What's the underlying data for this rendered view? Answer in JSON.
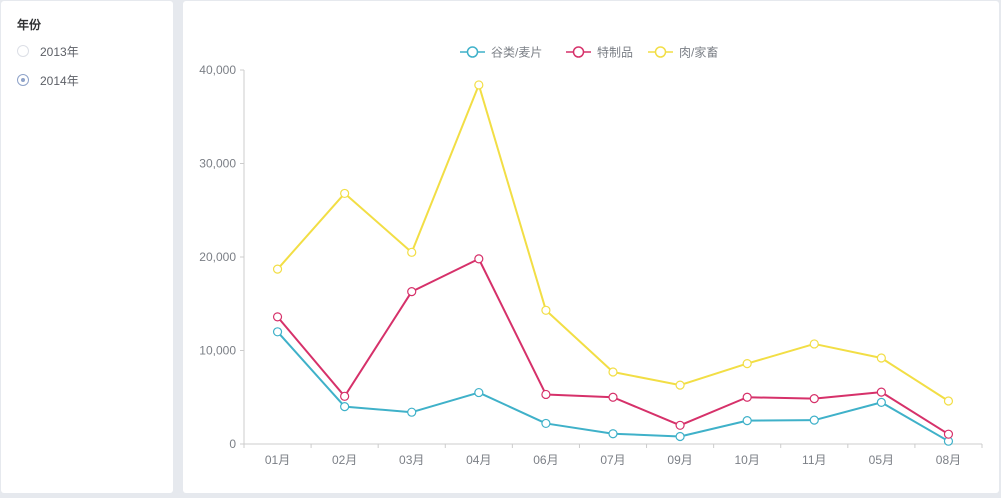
{
  "filter": {
    "title": "年份",
    "options": [
      {
        "label": "2013年",
        "checked": false
      },
      {
        "label": "2014年",
        "checked": true
      }
    ]
  },
  "chart_data": {
    "type": "line",
    "categories": [
      "01月",
      "02月",
      "03月",
      "04月",
      "06月",
      "07月",
      "09月",
      "10月",
      "11月",
      "05月",
      "08月"
    ],
    "ylim": [
      0,
      40000
    ],
    "yticks": [
      0,
      10000,
      20000,
      30000,
      40000
    ],
    "ytick_labels": [
      "0",
      "10,000",
      "20,000",
      "30,000",
      "40,000"
    ],
    "grid": false,
    "legend_position": "top-center",
    "series": [
      {
        "name": "谷类/麦片",
        "color": "#3fb1c9",
        "values": [
          12000,
          4000,
          3400,
          5500,
          2200,
          1100,
          800,
          2500,
          2550,
          4450,
          300
        ]
      },
      {
        "name": "特制品",
        "color": "#d6316a",
        "values": [
          13600,
          5100,
          16300,
          19800,
          5300,
          5000,
          2000,
          5000,
          4850,
          5550,
          1050
        ]
      },
      {
        "name": "肉/家畜",
        "color": "#f2de45",
        "values": [
          18700,
          26800,
          20500,
          38400,
          14300,
          7700,
          6300,
          8600,
          10700,
          9200,
          4600
        ]
      }
    ]
  }
}
